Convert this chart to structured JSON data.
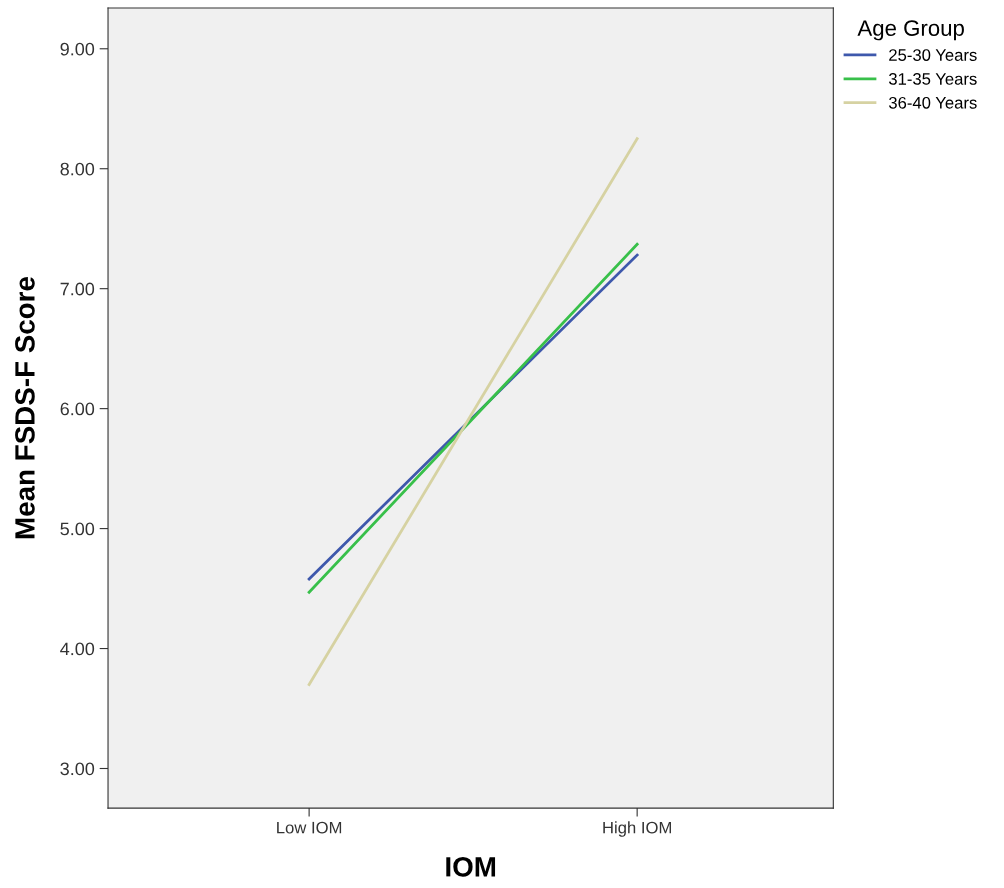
{
  "chart_data": {
    "type": "line",
    "xlabel": "IOM",
    "ylabel": "Mean FSDS-F Score",
    "legend_title": "Age Group",
    "legend": "top right",
    "grid": false,
    "marker": "none",
    "line_style": "solid",
    "categories": [
      "Low IOM",
      "High IOM"
    ],
    "ylim": [
      2.67,
      9.34
    ],
    "yticks": [
      {
        "value": 3,
        "label": "3.00"
      },
      {
        "value": 4,
        "label": "4.00"
      },
      {
        "value": 5,
        "label": "5.00"
      },
      {
        "value": 6,
        "label": "6.00"
      },
      {
        "value": 7,
        "label": "7.00"
      },
      {
        "value": 8,
        "label": "8.00"
      },
      {
        "value": 9,
        "label": "9.00"
      }
    ],
    "series": [
      {
        "name": "25-30 Years",
        "color": "#3e58ac",
        "values": [
          4.58,
          7.28
        ]
      },
      {
        "name": "31-35 Years",
        "color": "#38c04a",
        "values": [
          4.47,
          7.37
        ]
      },
      {
        "name": "36-40 Years",
        "color": "#d6d2a2",
        "values": [
          3.7,
          8.25
        ]
      }
    ]
  }
}
